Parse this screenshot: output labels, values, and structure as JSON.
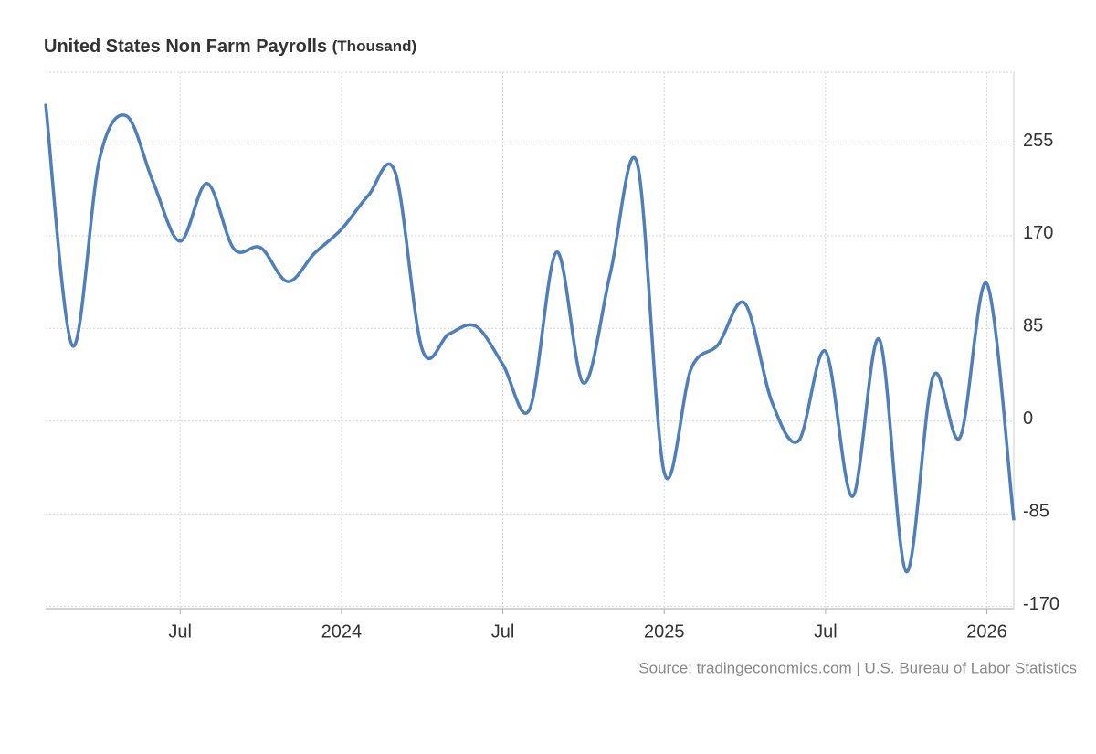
{
  "chart_data": {
    "type": "line",
    "title": "United States Non Farm Payrolls",
    "unit": "(Thousand)",
    "source": "Source: tradingeconomics.com | U.S. Bureau of Labor Statistics",
    "x": [
      "2023-02",
      "2023-03",
      "2023-04",
      "2023-05",
      "2023-06",
      "2023-07",
      "2023-08",
      "2023-09",
      "2023-10",
      "2023-11",
      "2023-12",
      "2024-01",
      "2024-02",
      "2024-03",
      "2024-04",
      "2024-05",
      "2024-06",
      "2024-07",
      "2024-08",
      "2024-09",
      "2024-10",
      "2024-11",
      "2024-12",
      "2025-01",
      "2025-02",
      "2025-03",
      "2025-04",
      "2025-05",
      "2025-06",
      "2025-07",
      "2025-08",
      "2025-09",
      "2025-10",
      "2025-11",
      "2025-12",
      "2026-01",
      "2026-02"
    ],
    "series": [
      {
        "name": "Non Farm Payrolls",
        "color": "#4e7fba",
        "values": [
          291,
          69,
          240,
          280,
          219,
          165,
          218,
          158,
          159,
          128,
          154,
          176,
          207,
          228,
          66,
          80,
          87,
          52,
          11,
          155,
          35,
          136,
          236,
          -47,
          48,
          70,
          108,
          18,
          -18,
          64,
          -69,
          75,
          -138,
          41,
          -15,
          126,
          -91
        ]
      }
    ],
    "xlim": [
      "2023-02",
      "2026-02"
    ],
    "xticks": [
      {
        "value": "2023-07",
        "label": "Jul"
      },
      {
        "value": "2024-01",
        "label": "2024"
      },
      {
        "value": "2024-07",
        "label": "Jul"
      },
      {
        "value": "2025-01",
        "label": "2025"
      },
      {
        "value": "2025-07",
        "label": "Jul"
      },
      {
        "value": "2026-01",
        "label": "2026"
      }
    ],
    "ylim": [
      -172,
      320
    ],
    "yticks": [
      255,
      170,
      85,
      0,
      -85,
      -170
    ],
    "grid": true
  }
}
